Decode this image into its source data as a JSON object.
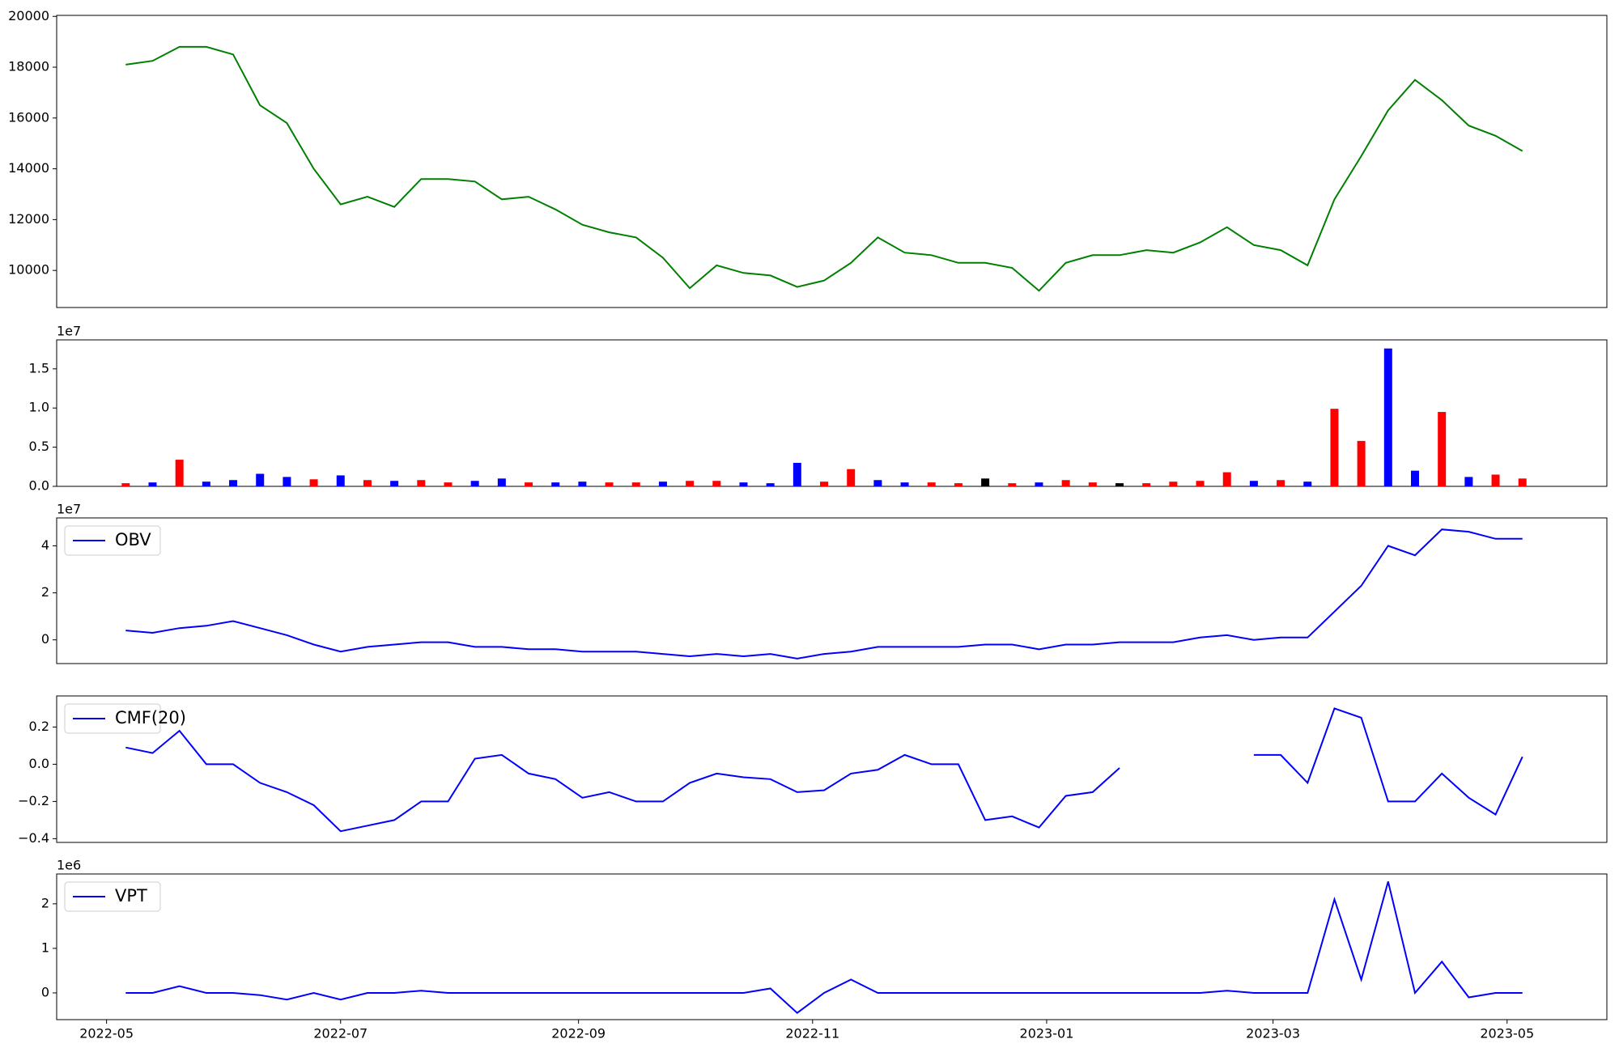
{
  "chart_data": [
    {
      "type": "line",
      "xlim": [
        "2022-04-18",
        "2023-05-27"
      ],
      "x": [
        "2022-05-06",
        "2022-05-13",
        "2022-05-20",
        "2022-05-27",
        "2022-06-03",
        "2022-06-10",
        "2022-06-17",
        "2022-06-24",
        "2022-07-01",
        "2022-07-08",
        "2022-07-15",
        "2022-07-22",
        "2022-07-29",
        "2022-08-05",
        "2022-08-12",
        "2022-08-19",
        "2022-08-26",
        "2022-09-02",
        "2022-09-09",
        "2022-09-16",
        "2022-09-23",
        "2022-09-30",
        "2022-10-07",
        "2022-10-14",
        "2022-10-21",
        "2022-10-28",
        "2022-11-04",
        "2022-11-11",
        "2022-11-18",
        "2022-11-25",
        "2022-12-02",
        "2022-12-09",
        "2022-12-16",
        "2022-12-23",
        "2022-12-30",
        "2023-01-06",
        "2023-01-13",
        "2023-01-20",
        "2023-01-27",
        "2023-02-03",
        "2023-02-10",
        "2023-02-17",
        "2023-02-24",
        "2023-03-03",
        "2023-03-10",
        "2023-03-17",
        "2023-03-24",
        "2023-03-31",
        "2023-04-07",
        "2023-04-14",
        "2023-04-21",
        "2023-04-28",
        "2023-05-05"
      ],
      "series": [
        {
          "color": "#008000",
          "values": [
            18100,
            18250,
            18800,
            18800,
            18500,
            16500,
            15800,
            14000,
            12600,
            12900,
            12500,
            13600,
            13600,
            13500,
            12800,
            12900,
            12400,
            11800,
            11500,
            11300,
            10500,
            9300,
            10200,
            9900,
            9800,
            9350,
            9600,
            10300,
            11300,
            10700,
            10600,
            10300,
            10300,
            10100,
            9200,
            10300,
            10600,
            10600,
            10800,
            10700,
            11100,
            11700,
            11000,
            10800,
            10200,
            12800,
            14500,
            16300,
            17500,
            16700,
            15700,
            15300,
            14700
          ]
        }
      ],
      "ylim": [
        8540,
        20040
      ],
      "yticks": [
        10000,
        12000,
        14000,
        16000,
        18000,
        20000
      ]
    },
    {
      "type": "bar",
      "xlim": [
        "2022-04-18",
        "2023-05-27"
      ],
      "offset_label": "1e7",
      "x": [
        "2022-05-06",
        "2022-05-13",
        "2022-05-20",
        "2022-05-27",
        "2022-06-03",
        "2022-06-10",
        "2022-06-17",
        "2022-06-24",
        "2022-07-01",
        "2022-07-08",
        "2022-07-15",
        "2022-07-22",
        "2022-07-29",
        "2022-08-05",
        "2022-08-12",
        "2022-08-19",
        "2022-08-26",
        "2022-09-02",
        "2022-09-09",
        "2022-09-16",
        "2022-09-23",
        "2022-09-30",
        "2022-10-07",
        "2022-10-14",
        "2022-10-21",
        "2022-10-28",
        "2022-11-04",
        "2022-11-11",
        "2022-11-18",
        "2022-11-25",
        "2022-12-02",
        "2022-12-09",
        "2022-12-16",
        "2022-12-23",
        "2022-12-30",
        "2023-01-06",
        "2023-01-13",
        "2023-01-20",
        "2023-01-27",
        "2023-02-03",
        "2023-02-10",
        "2023-02-17",
        "2023-02-24",
        "2023-03-03",
        "2023-03-10",
        "2023-03-17",
        "2023-03-24",
        "2023-03-31",
        "2023-04-07",
        "2023-04-14",
        "2023-04-21",
        "2023-04-28",
        "2023-05-05"
      ],
      "series": [
        {
          "colors": [
            "red",
            "blue",
            "red",
            "blue",
            "blue",
            "blue",
            "blue",
            "red",
            "blue",
            "red",
            "blue",
            "red",
            "red",
            "blue",
            "blue",
            "red",
            "blue",
            "blue",
            "red",
            "red",
            "blue",
            "red",
            "red",
            "blue",
            "blue",
            "blue",
            "red",
            "red",
            "blue",
            "blue",
            "red",
            "red",
            "black",
            "red",
            "blue",
            "red",
            "red",
            "black",
            "red",
            "red",
            "red",
            "red",
            "blue",
            "red",
            "blue",
            "red",
            "red",
            "blue",
            "blue",
            "red",
            "blue",
            "red",
            "red"
          ],
          "values": [
            0.4,
            0.5,
            3.4,
            0.6,
            0.8,
            1.6,
            1.2,
            0.9,
            1.4,
            0.8,
            0.7,
            0.8,
            0.5,
            0.7,
            1.0,
            0.5,
            0.5,
            0.6,
            0.5,
            0.5,
            0.6,
            0.7,
            0.7,
            0.5,
            0.4,
            3.0,
            0.6,
            2.2,
            0.8,
            0.5,
            0.5,
            0.4,
            1.0,
            0.4,
            0.5,
            0.8,
            0.5,
            0.4,
            0.4,
            0.6,
            0.7,
            1.8,
            0.7,
            0.8,
            0.6,
            9.9,
            5.8,
            17.6,
            2.0,
            9.5,
            1.2,
            1.5,
            1.0
          ]
        }
      ],
      "ylim": [
        0,
        18.7
      ],
      "yticks": [
        {
          "value": 0,
          "label": "0.0"
        },
        {
          "value": 5,
          "label": "0.5"
        },
        {
          "value": 10,
          "label": "1.0"
        },
        {
          "value": 15,
          "label": "1.5"
        }
      ]
    },
    {
      "type": "line",
      "xlim": [
        "2022-04-18",
        "2023-05-27"
      ],
      "offset_label": "1e7",
      "x": [
        "2022-05-06",
        "2022-05-13",
        "2022-05-20",
        "2022-05-27",
        "2022-06-03",
        "2022-06-10",
        "2022-06-17",
        "2022-06-24",
        "2022-07-01",
        "2022-07-08",
        "2022-07-15",
        "2022-07-22",
        "2022-07-29",
        "2022-08-05",
        "2022-08-12",
        "2022-08-19",
        "2022-08-26",
        "2022-09-02",
        "2022-09-09",
        "2022-09-16",
        "2022-09-23",
        "2022-09-30",
        "2022-10-07",
        "2022-10-14",
        "2022-10-21",
        "2022-10-28",
        "2022-11-04",
        "2022-11-11",
        "2022-11-18",
        "2022-11-25",
        "2022-12-02",
        "2022-12-09",
        "2022-12-16",
        "2022-12-23",
        "2022-12-30",
        "2023-01-06",
        "2023-01-13",
        "2023-01-20",
        "2023-01-27",
        "2023-02-03",
        "2023-02-10",
        "2023-02-17",
        "2023-02-24",
        "2023-03-03",
        "2023-03-10",
        "2023-03-17",
        "2023-03-24",
        "2023-03-31",
        "2023-04-07",
        "2023-04-14",
        "2023-04-21",
        "2023-04-28",
        "2023-05-05"
      ],
      "series": [
        {
          "name": "OBV",
          "color": "blue",
          "values": [
            0.4,
            0.3,
            0.5,
            0.6,
            0.8,
            0.5,
            0.2,
            -0.2,
            -0.5,
            -0.3,
            -0.2,
            -0.1,
            -0.1,
            -0.3,
            -0.3,
            -0.4,
            -0.4,
            -0.5,
            -0.5,
            -0.5,
            -0.6,
            -0.7,
            -0.6,
            -0.7,
            -0.6,
            -0.8,
            -0.6,
            -0.5,
            -0.3,
            -0.3,
            -0.3,
            -0.3,
            -0.2,
            -0.2,
            -0.4,
            -0.2,
            -0.2,
            -0.1,
            -0.1,
            -0.1,
            0.1,
            0.2,
            0,
            0.1,
            0.1,
            1.2,
            2.3,
            4.0,
            3.6,
            4.7,
            4.6,
            4.3,
            4.3
          ]
        }
      ],
      "ylim": [
        -1.01,
        5.19
      ],
      "yticks": [
        0,
        2,
        4
      ],
      "legend": "upper left"
    },
    {
      "type": "line",
      "xlim": [
        "2022-04-18",
        "2023-05-27"
      ],
      "x": [
        "2022-05-06",
        "2022-05-13",
        "2022-05-20",
        "2022-05-27",
        "2022-06-03",
        "2022-06-10",
        "2022-06-17",
        "2022-06-24",
        "2022-07-01",
        "2022-07-08",
        "2022-07-15",
        "2022-07-22",
        "2022-07-29",
        "2022-08-05",
        "2022-08-12",
        "2022-08-19",
        "2022-08-26",
        "2022-09-02",
        "2022-09-09",
        "2022-09-16",
        "2022-09-23",
        "2022-09-30",
        "2022-10-07",
        "2022-10-14",
        "2022-10-21",
        "2022-10-28",
        "2022-11-04",
        "2022-11-11",
        "2022-11-18",
        "2022-11-25",
        "2022-12-02",
        "2022-12-09",
        "2022-12-16",
        "2022-12-23",
        "2022-12-30",
        "2023-01-06",
        "2023-01-13",
        "2023-01-20",
        "2023-01-27",
        "2023-02-03",
        "2023-02-10",
        "2023-02-17",
        "2023-02-24",
        "2023-03-03",
        "2023-03-10",
        "2023-03-17",
        "2023-03-24",
        "2023-03-31",
        "2023-04-07",
        "2023-04-14",
        "2023-04-21",
        "2023-04-28",
        "2023-05-05"
      ],
      "series": [
        {
          "name": "CMF(20)",
          "color": "blue",
          "values": [
            0.09,
            0.06,
            0.18,
            0.0,
            0.0,
            -0.1,
            -0.15,
            -0.22,
            -0.36,
            -0.33,
            -0.3,
            -0.2,
            -0.2,
            0.03,
            0.05,
            -0.05,
            -0.08,
            -0.18,
            -0.15,
            -0.2,
            -0.2,
            -0.1,
            -0.05,
            -0.07,
            -0.08,
            -0.15,
            -0.14,
            -0.05,
            -0.03,
            0.05,
            0.0,
            0.0,
            -0.3,
            -0.28,
            -0.34,
            -0.17,
            -0.15,
            -0.02,
            null,
            null,
            null,
            null,
            0.05,
            0.05,
            -0.1,
            0.3,
            0.25,
            -0.2,
            -0.2,
            -0.05,
            -0.18,
            -0.27,
            0.04
          ]
        }
      ],
      "ylim": [
        -0.42,
        0.367
      ],
      "yticks": [
        {
          "value": -0.4,
          "label": "−0.4"
        },
        {
          "value": -0.2,
          "label": "−0.2"
        },
        {
          "value": 0,
          "label": "0.0"
        },
        0.2
      ],
      "legend": "upper left"
    },
    {
      "type": "line",
      "xlim": [
        "2022-04-18",
        "2023-05-27"
      ],
      "offset_label": "1e6",
      "x": [
        "2022-05-06",
        "2022-05-13",
        "2022-05-20",
        "2022-05-27",
        "2022-06-03",
        "2022-06-10",
        "2022-06-17",
        "2022-06-24",
        "2022-07-01",
        "2022-07-08",
        "2022-07-15",
        "2022-07-22",
        "2022-07-29",
        "2022-08-05",
        "2022-08-12",
        "2022-08-19",
        "2022-08-26",
        "2022-09-02",
        "2022-09-09",
        "2022-09-16",
        "2022-09-23",
        "2022-09-30",
        "2022-10-07",
        "2022-10-14",
        "2022-10-21",
        "2022-10-28",
        "2022-11-04",
        "2022-11-11",
        "2022-11-18",
        "2022-11-25",
        "2022-12-02",
        "2022-12-09",
        "2022-12-16",
        "2022-12-23",
        "2022-12-30",
        "2023-01-06",
        "2023-01-13",
        "2023-01-20",
        "2023-01-27",
        "2023-02-03",
        "2023-02-10",
        "2023-02-17",
        "2023-02-24",
        "2023-03-03",
        "2023-03-10",
        "2023-03-17",
        "2023-03-24",
        "2023-03-31",
        "2023-04-07",
        "2023-04-14",
        "2023-04-21",
        "2023-04-28",
        "2023-05-05"
      ],
      "series": [
        {
          "name": "VPT",
          "color": "blue",
          "values": [
            0,
            0,
            0.15,
            0,
            0,
            -0.05,
            -0.15,
            0,
            -0.15,
            0,
            0,
            0.05,
            0,
            0,
            0,
            0,
            0,
            0,
            0,
            0,
            0,
            0,
            0,
            0,
            0.1,
            -0.45,
            0,
            0.3,
            0,
            0,
            0,
            0,
            0,
            0,
            0,
            0,
            0,
            0,
            0,
            0,
            0,
            0.05,
            0,
            0,
            0,
            2.1,
            0.3,
            2.5,
            0,
            0.7,
            -0.1,
            0,
            0
          ]
        }
      ],
      "ylim": [
        -0.6,
        2.67
      ],
      "yticks": [
        0,
        1,
        2
      ],
      "legend": "upper left",
      "xticks": [
        "2022-05",
        "2022-07",
        "2022-09",
        "2022-11",
        "2023-01",
        "2023-03",
        "2023-05"
      ]
    }
  ]
}
